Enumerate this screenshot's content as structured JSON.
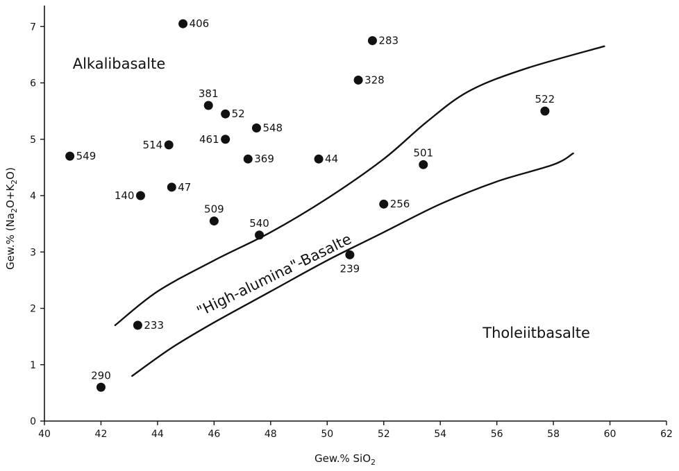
{
  "chart_data": {
    "type": "scatter",
    "title": "",
    "xlabel_parts": {
      "prefix": "Gew.% SiO",
      "sub": "2"
    },
    "ylabel_parts": [
      {
        "text": "Gew.% (Na",
        "sub": false
      },
      {
        "text": "2",
        "sub": true
      },
      {
        "text": "O+K",
        "sub": false
      },
      {
        "text": "2",
        "sub": true
      },
      {
        "text": "O)",
        "sub": false
      }
    ],
    "xlim": [
      40,
      62
    ],
    "ylim": [
      0,
      7.2
    ],
    "x_ticks": [
      40,
      42,
      44,
      46,
      48,
      50,
      52,
      54,
      56,
      58,
      60,
      62
    ],
    "y_ticks": [
      0,
      1,
      2,
      3,
      4,
      5,
      6,
      7
    ],
    "grid": false,
    "points": [
      {
        "label": "406",
        "x": 44.9,
        "y": 7.05,
        "pos": "right"
      },
      {
        "label": "283",
        "x": 51.6,
        "y": 6.75,
        "pos": "right"
      },
      {
        "label": "328",
        "x": 51.1,
        "y": 6.05,
        "pos": "right"
      },
      {
        "label": "381",
        "x": 45.8,
        "y": 5.6,
        "pos": "above"
      },
      {
        "label": "52",
        "x": 46.4,
        "y": 5.45,
        "pos": "right"
      },
      {
        "label": "548",
        "x": 47.5,
        "y": 5.2,
        "pos": "right"
      },
      {
        "label": "461",
        "x": 46.4,
        "y": 5.0,
        "pos": "left"
      },
      {
        "label": "514",
        "x": 44.4,
        "y": 4.9,
        "pos": "left"
      },
      {
        "label": "549",
        "x": 40.9,
        "y": 4.7,
        "pos": "right"
      },
      {
        "label": "369",
        "x": 47.2,
        "y": 4.65,
        "pos": "right"
      },
      {
        "label": "44",
        "x": 49.7,
        "y": 4.65,
        "pos": "right"
      },
      {
        "label": "501",
        "x": 53.4,
        "y": 4.55,
        "pos": "above"
      },
      {
        "label": "47",
        "x": 44.5,
        "y": 4.15,
        "pos": "right"
      },
      {
        "label": "140",
        "x": 43.4,
        "y": 4.0,
        "pos": "left"
      },
      {
        "label": "256",
        "x": 52.0,
        "y": 3.85,
        "pos": "right"
      },
      {
        "label": "509",
        "x": 46.0,
        "y": 3.55,
        "pos": "above"
      },
      {
        "label": "540",
        "x": 47.6,
        "y": 3.3,
        "pos": "above"
      },
      {
        "label": "239",
        "x": 50.8,
        "y": 2.95,
        "pos": "below"
      },
      {
        "label": "522",
        "x": 57.7,
        "y": 5.5,
        "pos": "above"
      },
      {
        "label": "233",
        "x": 43.3,
        "y": 1.7,
        "pos": "right"
      },
      {
        "label": "290",
        "x": 42.0,
        "y": 0.6,
        "pos": "above"
      }
    ],
    "boundary_curves": [
      {
        "name": "upper",
        "points": [
          [
            42.5,
            1.7
          ],
          [
            44,
            2.3
          ],
          [
            46,
            2.85
          ],
          [
            48,
            3.35
          ],
          [
            50,
            3.95
          ],
          [
            52,
            4.65
          ],
          [
            53.5,
            5.3
          ],
          [
            55,
            5.85
          ],
          [
            57,
            6.25
          ],
          [
            59.8,
            6.65
          ]
        ]
      },
      {
        "name": "lower",
        "points": [
          [
            43.1,
            0.8
          ],
          [
            44.5,
            1.3
          ],
          [
            46,
            1.75
          ],
          [
            48,
            2.3
          ],
          [
            50,
            2.85
          ],
          [
            52,
            3.35
          ],
          [
            54,
            3.85
          ],
          [
            56,
            4.25
          ],
          [
            58,
            4.55
          ],
          [
            58.7,
            4.75
          ]
        ]
      }
    ],
    "region_labels": [
      {
        "text": "Alkalibasalte",
        "x": 41.0,
        "y": 6.25,
        "rotate": 0
      },
      {
        "text": "\"High-alumina\"-Basalte",
        "x": 45.5,
        "y": 1.85,
        "rotate": -26
      },
      {
        "text": "Tholeiitbasalte",
        "x": 55.5,
        "y": 1.48,
        "rotate": 0
      }
    ]
  }
}
